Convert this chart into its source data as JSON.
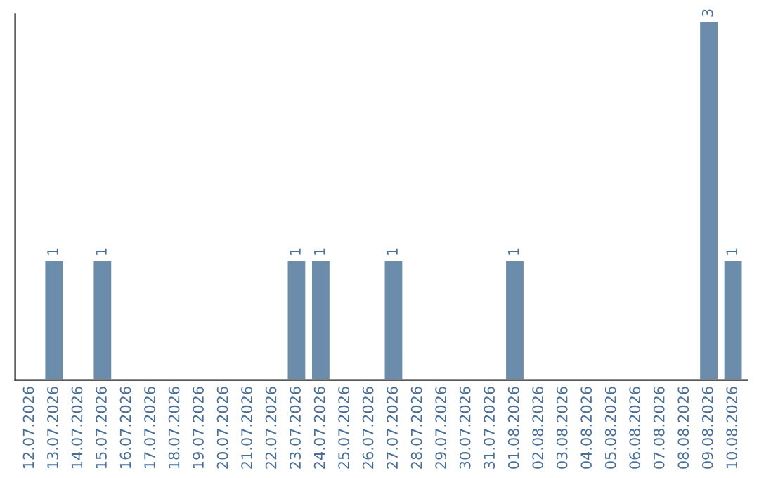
{
  "chart_data": {
    "type": "bar",
    "categories": [
      "12.07.2026",
      "13.07.2026",
      "14.07.2026",
      "15.07.2026",
      "16.07.2026",
      "17.07.2026",
      "18.07.2026",
      "19.07.2026",
      "20.07.2026",
      "21.07.2026",
      "22.07.2026",
      "23.07.2026",
      "24.07.2026",
      "25.07.2026",
      "26.07.2026",
      "27.07.2026",
      "28.07.2026",
      "29.07.2026",
      "30.07.2026",
      "31.07.2026",
      "01.08.2026",
      "02.08.2026",
      "03.08.2026",
      "04.08.2026",
      "05.08.2026",
      "06.08.2026",
      "07.08.2026",
      "08.08.2026",
      "09.08.2026",
      "10.08.2026"
    ],
    "values": [
      null,
      1,
      null,
      1,
      null,
      null,
      null,
      null,
      null,
      null,
      null,
      1,
      1,
      null,
      null,
      1,
      null,
      null,
      null,
      null,
      1,
      null,
      null,
      null,
      null,
      null,
      null,
      null,
      3,
      1
    ],
    "data_labels": true,
    "color": "#6b8caa",
    "ylim": [
      0,
      3.06
    ],
    "tick_labels": "x",
    "grid": false,
    "legend": false
  }
}
